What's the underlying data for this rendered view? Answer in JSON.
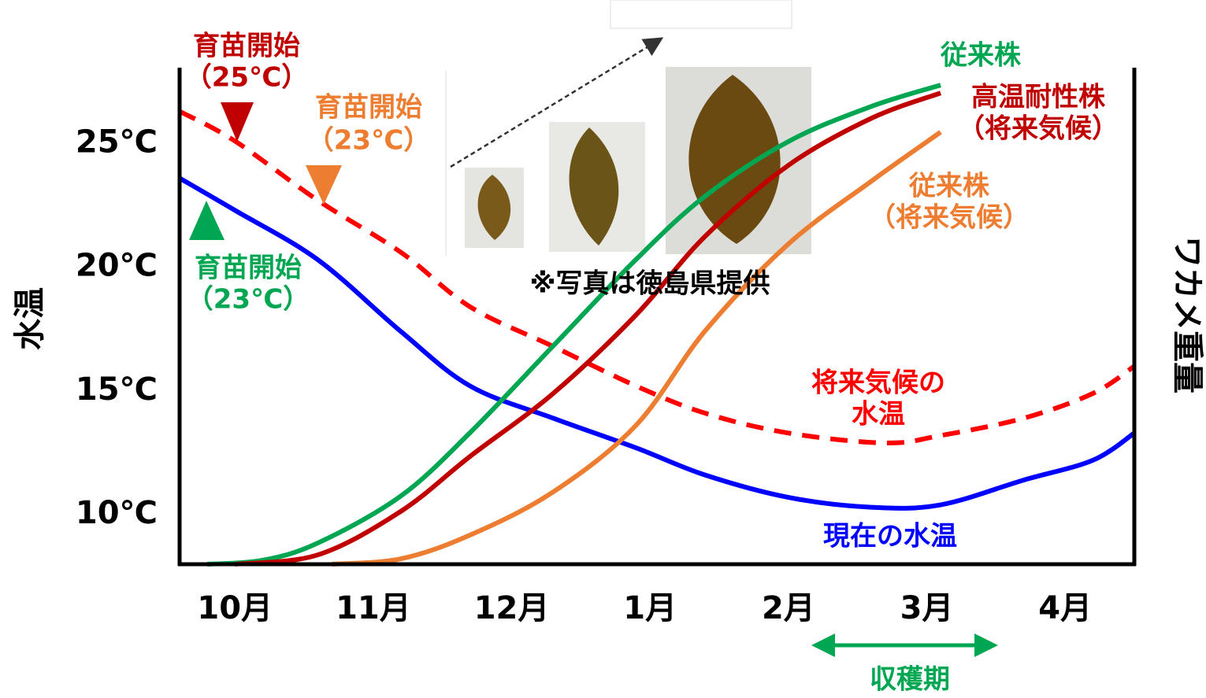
{
  "chart_data": {
    "type": "line",
    "ylabel": "水温",
    "y2label": "ワカメ重量",
    "xlim": [
      -0.4,
      6.5
    ],
    "xticks": [
      {
        "value": 0,
        "label": "10月"
      },
      {
        "value": 1,
        "label": "11月"
      },
      {
        "value": 2,
        "label": "12月"
      },
      {
        "value": 3,
        "label": "1月"
      },
      {
        "value": 4,
        "label": "2月"
      },
      {
        "value": 5,
        "label": "3月"
      },
      {
        "value": 6,
        "label": "4月"
      }
    ],
    "ylim": [
      8,
      28
    ],
    "yticks": [
      {
        "value": 10,
        "label": "10℃"
      },
      {
        "value": 15,
        "label": "15℃"
      },
      {
        "value": 20,
        "label": "20℃"
      },
      {
        "value": 25,
        "label": "25℃"
      }
    ],
    "y2lim": [
      0,
      100
    ],
    "series": [
      {
        "color": "#0000ff",
        "dashed": false,
        "x": [
          -0.4,
          0,
          0.6,
          1.2,
          1.7,
          2.3,
          2.9,
          3.4,
          4.0,
          4.6,
          5.1,
          5.7,
          6.2,
          6.5
        ],
        "values": [
          23.6,
          22.3,
          20.3,
          17.4,
          15.2,
          13.9,
          12.7,
          11.6,
          10.7,
          10.3,
          10.4,
          11.4,
          12.2,
          13.3
        ]
      },
      {
        "color": "#ff0000",
        "dashed": true,
        "x": [
          -0.4,
          0,
          0.6,
          1.2,
          1.7,
          2.3,
          2.9,
          3.4,
          4.0,
          4.7,
          5.1,
          5.7,
          6.2,
          6.5
        ],
        "values": [
          26.3,
          25.1,
          22.7,
          20.6,
          18.4,
          16.8,
          15.2,
          14.1,
          13.3,
          12.9,
          13.2,
          13.9,
          14.9,
          16.0
        ]
      },
      {
        "color": "#00a651",
        "dashed": false,
        "axis": "y2",
        "x": [
          -0.2,
          0.2,
          0.6,
          1.2,
          1.7,
          2.3,
          2.9,
          3.4,
          4.0,
          4.6,
          5.1
        ],
        "values": [
          0,
          0.8,
          4.3,
          13.8,
          26.6,
          44.1,
          61.6,
          74.4,
          85.4,
          92.5,
          96.8
        ]
      },
      {
        "color": "#c00000",
        "dashed": false,
        "axis": "y2",
        "x": [
          0.0,
          0.6,
          1.2,
          1.7,
          2.3,
          2.9,
          3.4,
          4.0,
          4.6,
          5.1
        ],
        "values": [
          0,
          1.9,
          10.7,
          21.8,
          34.5,
          50.4,
          66.3,
          80.6,
          90.1,
          95.2
        ]
      },
      {
        "color": "#ed7d31",
        "dashed": false,
        "axis": "y2",
        "x": [
          0.7,
          1.2,
          1.7,
          2.3,
          2.9,
          3.4,
          4.0,
          4.6,
          5.1
        ],
        "values": [
          0,
          1.1,
          5.9,
          14.6,
          28.1,
          47.2,
          64.7,
          77.4,
          87.3
        ]
      }
    ],
    "annotations": [
      {
        "text": "育苗開始",
        "color": "#c00000"
      },
      {
        "text": "（25℃）",
        "color": "#c00000"
      },
      {
        "text": "育苗開始",
        "color": "#ed7d31"
      },
      {
        "text": "（23℃）",
        "color": "#ed7d31"
      },
      {
        "text": "育苗開始",
        "color": "#00a651"
      },
      {
        "text": "（23℃）",
        "color": "#00a651"
      },
      {
        "text": "従来株",
        "color": "#00a651"
      },
      {
        "text": "高温耐性株",
        "color": "#c00000"
      },
      {
        "text": "（将来気候）",
        "color": "#c00000"
      },
      {
        "text": "従来株",
        "color": "#ed7d31"
      },
      {
        "text": "（将来気候）",
        "color": "#ed7d31"
      },
      {
        "text": "将来気候の",
        "color": "#ff0000"
      },
      {
        "text": "水温",
        "color": "#ff0000"
      },
      {
        "text": "現在の水温",
        "color": "#0000ff"
      },
      {
        "text": "※写真は徳島県提供",
        "color": "#000000"
      },
      {
        "text": "収穫期",
        "color": "#00a651"
      }
    ]
  }
}
